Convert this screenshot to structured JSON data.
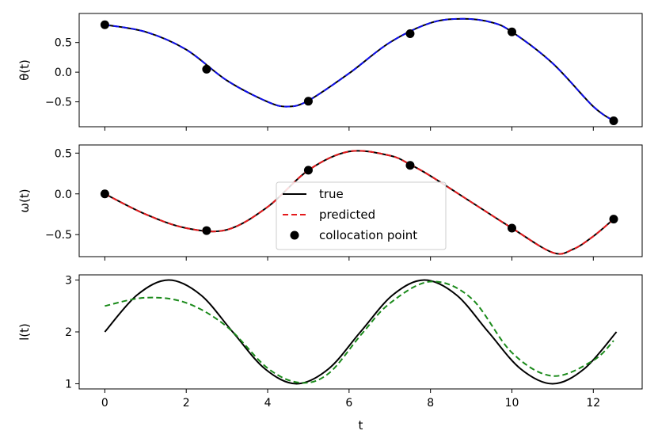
{
  "chart_data": {
    "type": "line",
    "xlabel": "t",
    "x_ticks": [
      0,
      2,
      4,
      6,
      8,
      10,
      12
    ],
    "xlim": [
      -0.63,
      13.2
    ],
    "legend": {
      "placement": "center",
      "entries": [
        {
          "label": "true",
          "style": "solid",
          "color": "#000000"
        },
        {
          "label": "predicted",
          "style": "dashed",
          "color": "#e41a1c"
        },
        {
          "label": "collocation point",
          "style": "marker",
          "color": "#000000"
        }
      ]
    },
    "panels": [
      {
        "ylabel": "θ(t)",
        "ylim": [
          -0.92,
          0.99
        ],
        "y_ticks": [
          -0.5,
          0.0,
          0.5
        ],
        "y_tick_labels": [
          "−0.5",
          "0.0",
          "0.5"
        ],
        "predicted_color": "#1010ee",
        "series": [
          {
            "name": "true",
            "x": [
              0,
              1,
              2,
              3,
              4,
              4.5,
              5,
              6,
              7,
              8,
              8.8,
              9.5,
              10,
              11,
              12,
              12.5
            ],
            "y": [
              0.8,
              0.68,
              0.38,
              -0.14,
              -0.5,
              -0.58,
              -0.48,
              -0.02,
              0.5,
              0.83,
              0.9,
              0.84,
              0.68,
              0.15,
              -0.58,
              -0.82
            ]
          },
          {
            "name": "predicted",
            "x": [
              0,
              1,
              2,
              3,
              4,
              4.5,
              5,
              6,
              7,
              8,
              8.8,
              9.5,
              10,
              11,
              12,
              12.5
            ],
            "y": [
              0.8,
              0.68,
              0.38,
              -0.14,
              -0.5,
              -0.58,
              -0.48,
              -0.02,
              0.5,
              0.83,
              0.9,
              0.84,
              0.68,
              0.15,
              -0.58,
              -0.82
            ]
          }
        ],
        "collocation_points": {
          "x": [
            0,
            2.5,
            5,
            7.5,
            10,
            12.5
          ],
          "y": [
            0.8,
            0.05,
            -0.49,
            0.65,
            0.68,
            -0.82
          ]
        }
      },
      {
        "ylabel": "ω(t)",
        "ylim": [
          -0.77,
          0.6
        ],
        "y_ticks": [
          -0.5,
          0.0,
          0.5
        ],
        "y_tick_labels": [
          "−0.5",
          "0.0",
          "0.5"
        ],
        "predicted_color": "#e41a1c",
        "series": [
          {
            "name": "true",
            "x": [
              0,
              1,
              2,
              3,
              4,
              5,
              6,
              7,
              7.5,
              8,
              9,
              10,
              11,
              11.5,
              12,
              12.5
            ],
            "y": [
              0.0,
              -0.25,
              -0.42,
              -0.44,
              -0.16,
              0.29,
              0.52,
              0.47,
              0.36,
              0.22,
              -0.1,
              -0.42,
              -0.72,
              -0.68,
              -0.52,
              -0.31
            ]
          },
          {
            "name": "predicted",
            "x": [
              0,
              1,
              2,
              3,
              4,
              5,
              6,
              7,
              7.5,
              8,
              9,
              10,
              11,
              11.5,
              12,
              12.5
            ],
            "y": [
              0.0,
              -0.25,
              -0.42,
              -0.44,
              -0.16,
              0.29,
              0.52,
              0.47,
              0.36,
              0.22,
              -0.1,
              -0.42,
              -0.72,
              -0.68,
              -0.52,
              -0.31
            ]
          }
        ],
        "collocation_points": {
          "x": [
            0,
            2.5,
            5,
            7.5,
            10,
            12.5
          ],
          "y": [
            0.0,
            -0.45,
            0.29,
            0.35,
            -0.42,
            -0.31
          ]
        }
      },
      {
        "ylabel": "l(t)",
        "ylim": [
          0.9,
          3.1
        ],
        "y_ticks": [
          1,
          2,
          3
        ],
        "y_tick_labels": [
          "1",
          "2",
          "3"
        ],
        "predicted_color": "#1a8a1a",
        "series": [
          {
            "name": "true",
            "x": [
              0,
              0.79,
              1.57,
              2.36,
              3.14,
              3.93,
              4.71,
              5.5,
              6.28,
              7.07,
              7.85,
              8.64,
              9.42,
              10.21,
              11.0,
              11.78,
              12.57
            ],
            "y": [
              2.0,
              2.71,
              3.0,
              2.71,
              2.0,
              1.29,
              1.0,
              1.29,
              2.0,
              2.71,
              3.0,
              2.71,
              2.0,
              1.29,
              1.0,
              1.29,
              2.0
            ]
          },
          {
            "name": "predicted",
            "x": [
              0,
              1,
              2,
              3,
              4,
              4.8,
              5.5,
              6.3,
              7,
              8,
              9,
              10,
              11,
              12,
              12.5
            ],
            "y": [
              2.5,
              2.66,
              2.56,
              2.1,
              1.3,
              1.02,
              1.2,
              1.95,
              2.55,
              2.97,
              2.65,
              1.6,
              1.15,
              1.45,
              1.83
            ]
          }
        ]
      }
    ]
  }
}
